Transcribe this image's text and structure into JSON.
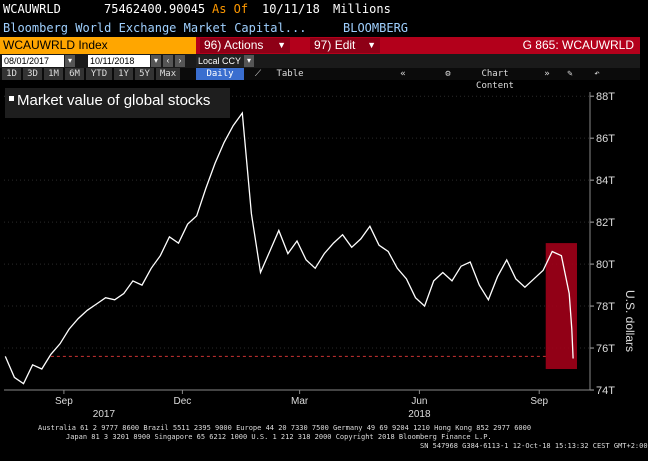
{
  "header": {
    "ticker": "WCAUWRLD",
    "value": "75462400.90045",
    "as_of_label": "As Of",
    "as_of_date": "10/11/18",
    "units": "Millions",
    "description": "Bloomberg World Exchange Market Capital...",
    "source": "BLOOMBERG"
  },
  "menubar": {
    "index_label": "WCAUWRLD Index",
    "actions_num": "96)",
    "actions_label": "Actions",
    "edit_num": "97)",
    "edit_label": "Edit",
    "graph_label": "G 865: WCAUWRLD"
  },
  "toolbar": {
    "start_date": "08/01/2017",
    "end_date": "10/11/2018",
    "currency": "Local CCY",
    "periods": [
      "1D",
      "3D",
      "1M",
      "6M",
      "YTD",
      "1Y",
      "5Y",
      "Max"
    ],
    "frequency": "Daily",
    "table_label": "Table",
    "chart_content_label": "Chart Content"
  },
  "legend": {
    "label": "Market value of global stocks"
  },
  "chart_data": {
    "type": "line",
    "ylabel": "U.S. dollars",
    "y_ticks": [
      "74T",
      "76T",
      "78T",
      "80T",
      "82T",
      "84T",
      "86T",
      "88T"
    ],
    "ylim": [
      74,
      88.2
    ],
    "x_ticks": [
      {
        "label": "Sep",
        "sublabel": "2017",
        "date": "2017-09"
      },
      {
        "label": "Dec",
        "sublabel": "",
        "date": "2017-12"
      },
      {
        "label": "Mar",
        "sublabel": "",
        "date": "2018-03"
      },
      {
        "label": "Jun",
        "sublabel": "2018",
        "date": "2018-06"
      },
      {
        "label": "Sep",
        "sublabel": "",
        "date": "2018-09"
      }
    ],
    "series": [
      {
        "color": "#ffffff",
        "dates": [
          "2017-08-01",
          "2017-08-08",
          "2017-08-15",
          "2017-08-22",
          "2017-08-29",
          "2017-09-05",
          "2017-09-12",
          "2017-09-19",
          "2017-09-26",
          "2017-10-03",
          "2017-10-10",
          "2017-10-17",
          "2017-10-24",
          "2017-10-31",
          "2017-11-07",
          "2017-11-14",
          "2017-11-21",
          "2017-11-28",
          "2017-12-05",
          "2017-12-12",
          "2017-12-19",
          "2017-12-26",
          "2018-01-02",
          "2018-01-09",
          "2018-01-16",
          "2018-01-23",
          "2018-01-30",
          "2018-02-06",
          "2018-02-13",
          "2018-02-20",
          "2018-02-27",
          "2018-03-06",
          "2018-03-13",
          "2018-03-20",
          "2018-03-27",
          "2018-04-03",
          "2018-04-10",
          "2018-04-17",
          "2018-04-24",
          "2018-05-01",
          "2018-05-08",
          "2018-05-15",
          "2018-05-22",
          "2018-05-29",
          "2018-06-05",
          "2018-06-12",
          "2018-06-19",
          "2018-06-26",
          "2018-07-03",
          "2018-07-10",
          "2018-07-17",
          "2018-07-24",
          "2018-07-31",
          "2018-08-07",
          "2018-08-14",
          "2018-08-21",
          "2018-08-28",
          "2018-09-04",
          "2018-09-11",
          "2018-09-18",
          "2018-09-25",
          "2018-10-02",
          "2018-10-05",
          "2018-10-08",
          "2018-10-10",
          "2018-10-11"
        ],
        "values": [
          75.6,
          74.6,
          74.3,
          75.2,
          75.0,
          75.7,
          76.2,
          76.9,
          77.4,
          77.8,
          78.1,
          78.4,
          78.3,
          78.6,
          79.2,
          79.0,
          79.8,
          80.4,
          81.3,
          81.0,
          81.9,
          82.3,
          83.6,
          84.8,
          85.8,
          86.6,
          87.2,
          82.4,
          79.6,
          80.6,
          81.6,
          80.5,
          81.1,
          80.2,
          79.8,
          80.5,
          81.0,
          81.4,
          80.8,
          81.2,
          81.8,
          80.9,
          80.6,
          79.8,
          79.3,
          78.4,
          78.0,
          79.2,
          79.6,
          79.2,
          79.9,
          80.1,
          79.0,
          78.3,
          79.4,
          80.2,
          79.3,
          78.9,
          79.3,
          79.7,
          80.6,
          80.4,
          79.5,
          78.6,
          76.9,
          75.5
        ]
      }
    ],
    "reference_line": {
      "value": 75.6,
      "style": "dashed",
      "color": "#cc3333"
    },
    "highlight": {
      "from": "2018-09-20",
      "to": "2018-10-14",
      "ymin": 75.0,
      "ymax": 81.0,
      "color": "#a10018"
    }
  },
  "footer": {
    "line1": "Australia 61 2 9777 8600 Brazil 5511 2395 9000 Europe 44 20 7330 7500 Germany 49 69 9204 1210 Hong Kong 852 2977 6000",
    "line2": "Japan 81 3 3201 8900       Singapore 65 6212 1000      U.S. 1 212 318 2000         Copyright 2018 Bloomberg Finance L.P.",
    "line3": "SN 547968 G384-6113-1 12-Oct-18 15:13:32 CEST GMT+2:00"
  }
}
